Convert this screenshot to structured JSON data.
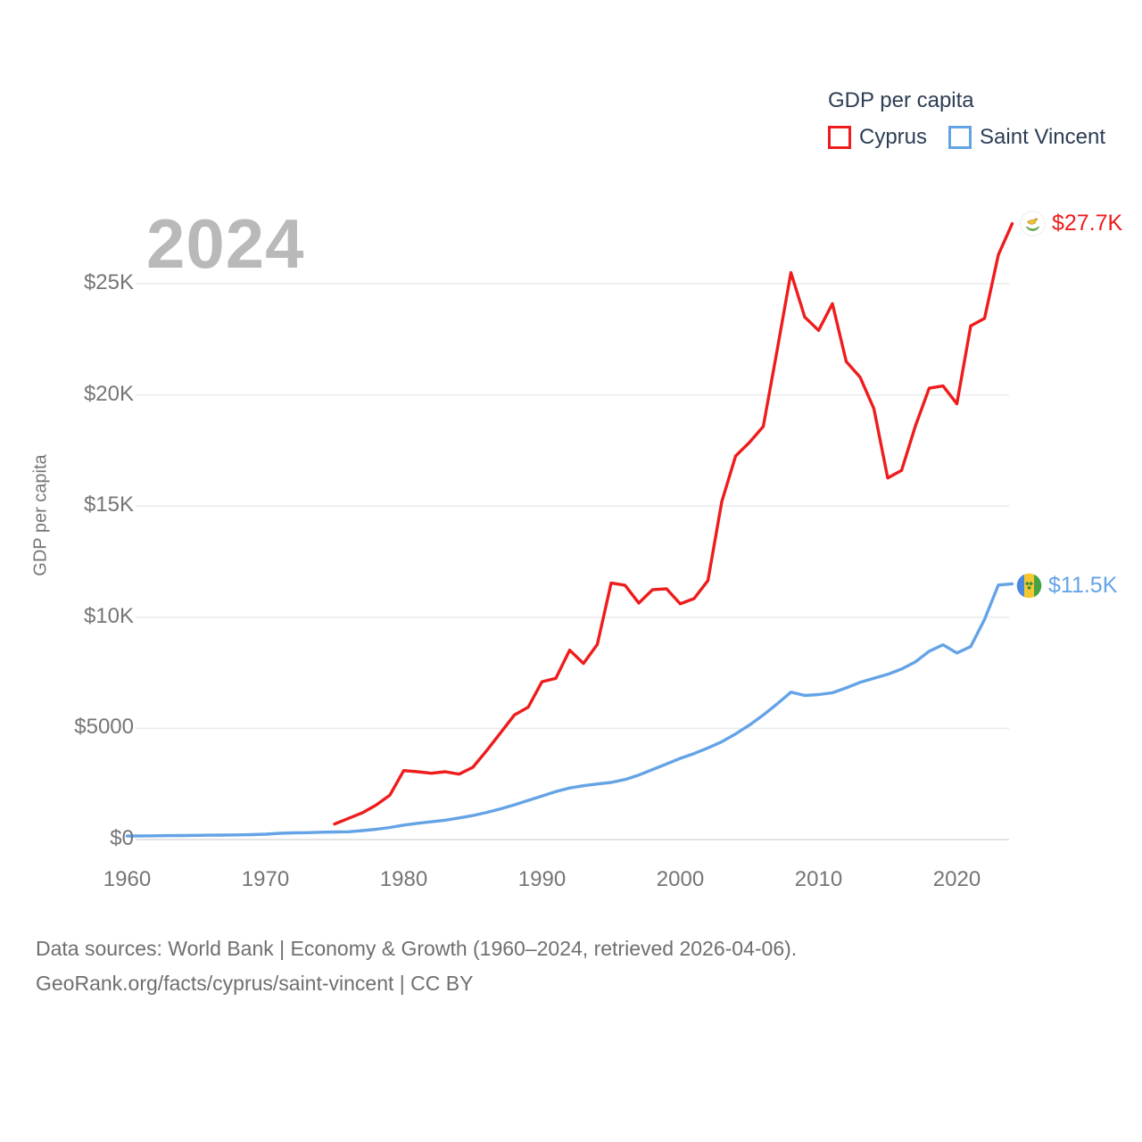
{
  "watermark": "2024",
  "legend": {
    "title": "GDP per capita",
    "items": [
      {
        "label": "Cyprus",
        "color": "#ee1c1c"
      },
      {
        "label": "Saint Vincent",
        "color": "#64a3e6"
      }
    ]
  },
  "y_axis": {
    "title": "GDP per capita",
    "ticks": [
      {
        "label": "$0",
        "value": 0
      },
      {
        "label": "$5000",
        "value": 5000
      },
      {
        "label": "$10K",
        "value": 10000
      },
      {
        "label": "$15K",
        "value": 15000
      },
      {
        "label": "$20K",
        "value": 20000
      },
      {
        "label": "$25K",
        "value": 25000
      }
    ]
  },
  "x_axis": {
    "ticks": [
      1960,
      1970,
      1980,
      1990,
      2000,
      2010,
      2020
    ]
  },
  "end_labels": [
    {
      "series": "Cyprus",
      "label": "$27.7K",
      "color": "#ee1c1c",
      "icon": "cyprus-flag-icon"
    },
    {
      "series": "Saint Vincent",
      "label": "$11.5K",
      "color": "#64a3e6",
      "icon": "saint-vincent-flag-icon"
    }
  ],
  "footer": {
    "line1": "Data sources: World Bank | Economy & Growth (1960–2024, retrieved 2026-04-06).",
    "line2": "GeoRank.org/facts/cyprus/saint-vincent | CC BY"
  },
  "chart_data": {
    "type": "line",
    "title": "GDP per capita",
    "xlabel": "",
    "ylabel": "GDP per capita",
    "xlim": [
      1958.8,
      2025.2
    ],
    "ylim": [
      0,
      28500
    ],
    "grid": "horizontal",
    "legend_position": "top-right",
    "series": [
      {
        "name": "Cyprus",
        "color": "#ee1c1c",
        "start_year": 1975,
        "end_year": 2024,
        "end_value_label": "$27.7K",
        "values": [
          700,
          950,
          1200,
          1550,
          2000,
          3100,
          3050,
          2980,
          3050,
          2940,
          3250,
          4000,
          4800,
          5600,
          5950,
          7100,
          7250,
          8520,
          7920,
          8780,
          11540,
          11440,
          10640,
          11240,
          11280,
          10600,
          10840,
          11650,
          15200,
          17250,
          17860,
          18580,
          22000,
          25500,
          23500,
          22900,
          24100,
          21500,
          20800,
          19380,
          16260,
          16600,
          18600,
          20300,
          20400,
          19600,
          23100,
          23440,
          26300,
          27700
        ]
      },
      {
        "name": "Saint Vincent",
        "color": "#64a3e6",
        "start_year": 1960,
        "end_year": 2024,
        "end_value_label": "$11.5K",
        "values": [
          160,
          165,
          170,
          175,
          180,
          190,
          195,
          200,
          210,
          220,
          240,
          280,
          300,
          310,
          330,
          340,
          350,
          400,
          460,
          540,
          650,
          730,
          800,
          870,
          970,
          1080,
          1220,
          1380,
          1560,
          1760,
          1960,
          2160,
          2320,
          2420,
          2500,
          2570,
          2700,
          2900,
          3150,
          3400,
          3650,
          3870,
          4120,
          4400,
          4750,
          5150,
          5600,
          6100,
          6630,
          6480,
          6520,
          6600,
          6820,
          7070,
          7250,
          7430,
          7670,
          7990,
          8470,
          8760,
          8390,
          8680,
          9900,
          11450,
          11500
        ]
      }
    ]
  }
}
